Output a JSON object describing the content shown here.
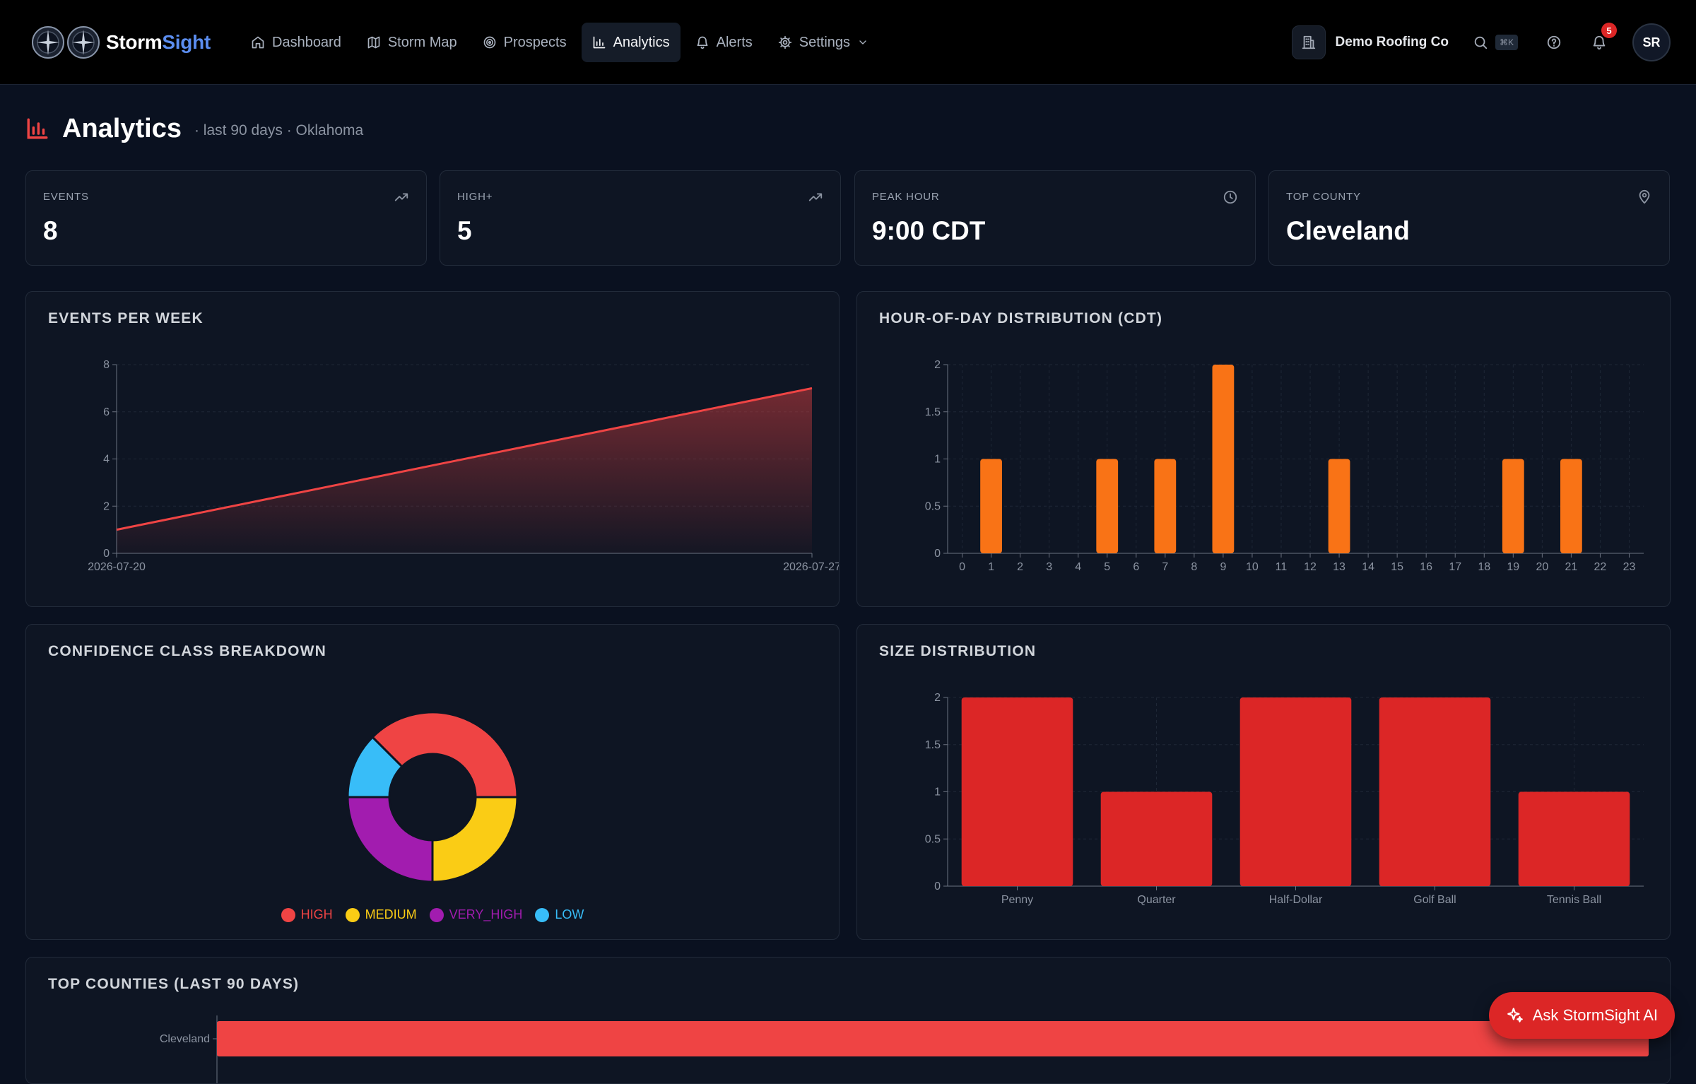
{
  "app": {
    "brand_part1": "Storm",
    "brand_part2": "Sight",
    "accent": "#ef4444",
    "brand_blue": "#5b8def"
  },
  "nav": {
    "items": [
      {
        "label": "Dashboard",
        "icon": "home-icon"
      },
      {
        "label": "Storm Map",
        "icon": "map-icon"
      },
      {
        "label": "Prospects",
        "icon": "target-icon"
      },
      {
        "label": "Analytics",
        "icon": "bar-chart-icon",
        "active": true
      },
      {
        "label": "Alerts",
        "icon": "bell-icon"
      },
      {
        "label": "Settings",
        "icon": "gear-icon",
        "dropdown": true
      }
    ]
  },
  "header_tools": {
    "org_name": "Demo Roofing Co",
    "search_shortcut": "⌘K",
    "notification_count": "5",
    "avatar_initials": "SR"
  },
  "page": {
    "title": "Analytics",
    "subtitle": "· last 90 days · Oklahoma"
  },
  "stats": [
    {
      "label": "EVENTS",
      "value": "8",
      "icon": "trending-up-icon"
    },
    {
      "label": "HIGH+",
      "value": "5",
      "icon": "trending-up-icon"
    },
    {
      "label": "PEAK HOUR",
      "value": "9:00 CDT",
      "icon": "clock-icon"
    },
    {
      "label": "TOP COUNTY",
      "value": "Cleveland",
      "icon": "map-pin-icon"
    }
  ],
  "panels": {
    "events_per_week": "EVENTS PER WEEK",
    "hour_of_day": "HOUR-OF-DAY DISTRIBUTION (CDT)",
    "confidence": "CONFIDENCE CLASS BREAKDOWN",
    "size": "SIZE DISTRIBUTION",
    "top_counties": "TOP COUNTIES (LAST 90 DAYS)"
  },
  "chart_data": [
    {
      "type": "area",
      "title": "EVENTS PER WEEK",
      "x": [
        "2026-07-20",
        "2026-07-27"
      ],
      "values": [
        1,
        7
      ],
      "yticks": [
        0,
        2,
        4,
        6,
        8
      ],
      "ylim": [
        0,
        8
      ],
      "color": "#ef4444",
      "grid": true
    },
    {
      "type": "bar",
      "title": "HOUR-OF-DAY DISTRIBUTION (CDT)",
      "categories": [
        "0",
        "1",
        "2",
        "3",
        "4",
        "5",
        "6",
        "7",
        "8",
        "9",
        "10",
        "11",
        "12",
        "13",
        "14",
        "15",
        "16",
        "17",
        "18",
        "19",
        "20",
        "21",
        "22",
        "23"
      ],
      "values": [
        0,
        1,
        0,
        0,
        0,
        1,
        0,
        1,
        0,
        2,
        0,
        0,
        0,
        1,
        0,
        0,
        0,
        0,
        0,
        1,
        0,
        1,
        0,
        0
      ],
      "yticks": [
        0,
        0.5,
        1,
        1.5,
        2
      ],
      "ylim": [
        0,
        2
      ],
      "color": "#f97316",
      "grid": true
    },
    {
      "type": "pie",
      "title": "CONFIDENCE CLASS BREAKDOWN",
      "categories": [
        "HIGH",
        "MEDIUM",
        "VERY_HIGH",
        "LOW"
      ],
      "values": [
        3,
        2,
        2,
        1
      ],
      "colors": [
        "#ef4444",
        "#facc15",
        "#a21caf",
        "#38bdf8"
      ],
      "legend": "bottom"
    },
    {
      "type": "bar",
      "title": "SIZE DISTRIBUTION",
      "categories": [
        "Penny",
        "Quarter",
        "Half-Dollar",
        "Golf Ball",
        "Tennis Ball"
      ],
      "values": [
        2,
        1,
        2,
        2,
        1
      ],
      "yticks": [
        0,
        0.5,
        1,
        1.5,
        2
      ],
      "ylim": [
        0,
        2
      ],
      "color": "#dc2626",
      "grid": true
    },
    {
      "type": "bar",
      "orientation": "horizontal",
      "title": "TOP COUNTIES (LAST 90 DAYS)",
      "categories": [
        "Cleveland"
      ],
      "values": [
        1
      ],
      "color": "#ef4444"
    }
  ],
  "ai_button": {
    "label": "Ask StormSight AI"
  }
}
